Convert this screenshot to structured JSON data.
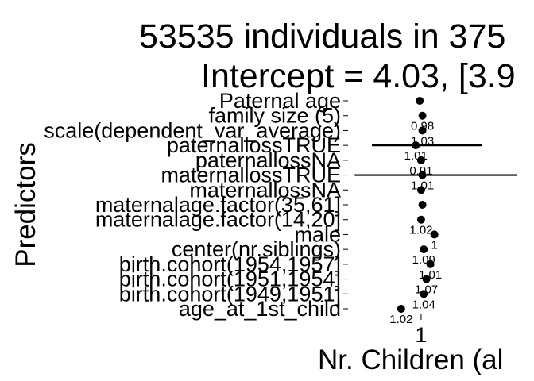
{
  "chart_data": {
    "type": "forest",
    "title_lines": [
      "53535 individuals in 375",
      "Intercept = 4.03, [3.9"
    ],
    "xlabel": "Nr. Children (al",
    "ylabel": "Predictors",
    "x_tick_labels": [
      {
        "value": 1,
        "label": "1"
      }
    ],
    "xlim": [
      0.45,
      1.85
    ],
    "predictors": [
      {
        "name": "Paternal age",
        "estimate": 0.99,
        "lower": null,
        "upper": null,
        "label": ""
      },
      {
        "name": "family size (5)",
        "estimate": 1.01,
        "lower": null,
        "upper": null,
        "label": "0.98"
      },
      {
        "name": "scale(dependent_var_average)",
        "estimate": 1.01,
        "lower": null,
        "upper": null,
        "label": "1.03"
      },
      {
        "name": "paternallossTRUE",
        "estimate": 0.96,
        "lower": 0.63,
        "upper": 1.46,
        "label": "1.01"
      },
      {
        "name": "paternallossNA",
        "estimate": 1.0,
        "lower": null,
        "upper": null,
        "label": "0.91"
      },
      {
        "name": "maternallossTRUE",
        "estimate": 1.01,
        "lower": 0.5,
        "upper": 1.72,
        "label": "1.01"
      },
      {
        "name": "maternallossNA",
        "estimate": 1.0,
        "lower": null,
        "upper": null,
        "label": ""
      },
      {
        "name": "maternalage.factor(35,61]",
        "estimate": 1.01,
        "lower": null,
        "upper": null,
        "label": ""
      },
      {
        "name": "maternalage.factor(14,20]",
        "estimate": 1.0,
        "lower": null,
        "upper": null,
        "label": "1.02"
      },
      {
        "name": "male",
        "estimate": 1.1,
        "lower": null,
        "upper": null,
        "label": "1"
      },
      {
        "name": "center(nr.siblings)",
        "estimate": 1.02,
        "lower": null,
        "upper": null,
        "label": "1.09"
      },
      {
        "name": "birth.cohort(1954,1957]",
        "estimate": 1.07,
        "lower": null,
        "upper": null,
        "label": "1.01"
      },
      {
        "name": "birth.cohort(1951,1954]",
        "estimate": 1.04,
        "lower": null,
        "upper": null,
        "label": "1.07"
      },
      {
        "name": "birth.cohort(1949,1951]",
        "estimate": 1.02,
        "lower": null,
        "upper": null,
        "label": "1.04"
      },
      {
        "name": "age_at_1st_child",
        "estimate": 0.85,
        "lower": null,
        "upper": null,
        "label": "1.02"
      }
    ],
    "reference_line": 1,
    "grid": false,
    "legend": "none"
  }
}
